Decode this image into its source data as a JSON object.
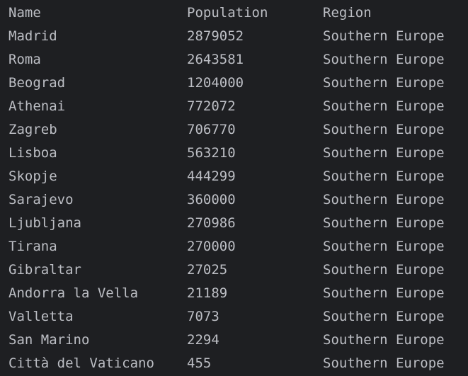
{
  "table": {
    "columns": [
      "Name",
      "Population",
      "Region"
    ],
    "rows": [
      [
        "Madrid",
        "2879052",
        "Southern Europe"
      ],
      [
        "Roma",
        "2643581",
        "Southern Europe"
      ],
      [
        "Beograd",
        "1204000",
        "Southern Europe"
      ],
      [
        "Athenai",
        "772072",
        "Southern Europe"
      ],
      [
        "Zagreb",
        "706770",
        "Southern Europe"
      ],
      [
        "Lisboa",
        "563210",
        "Southern Europe"
      ],
      [
        "Skopje",
        "444299",
        "Southern Europe"
      ],
      [
        "Sarajevo",
        "360000",
        "Southern Europe"
      ],
      [
        "Ljubljana",
        "270986",
        "Southern Europe"
      ],
      [
        "Tirana",
        "270000",
        "Southern Europe"
      ],
      [
        "Gibraltar",
        "27025",
        "Southern Europe"
      ],
      [
        "Andorra la Vella",
        "21189",
        "Southern Europe"
      ],
      [
        "Valletta",
        "7073",
        "Southern Europe"
      ],
      [
        "San Marino",
        "2294",
        "Southern Europe"
      ],
      [
        "Città del Vaticano",
        "455",
        "Southern Europe"
      ]
    ]
  },
  "colors": {
    "background": "#1e1f22",
    "text": "#bcbec4"
  }
}
